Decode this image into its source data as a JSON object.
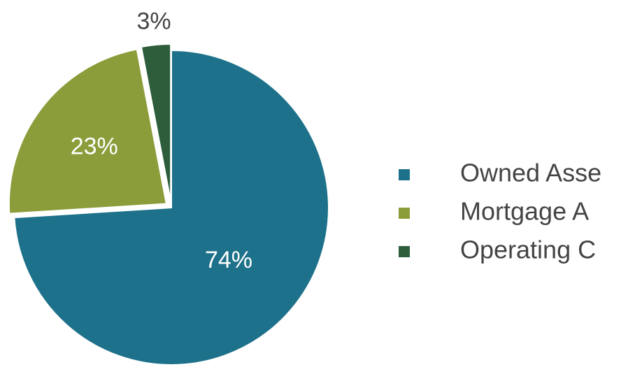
{
  "chart_data": {
    "type": "pie",
    "categories": [
      "Owned Asse",
      "Mortgage A",
      "Operating C"
    ],
    "values": [
      74,
      23,
      3
    ],
    "value_labels": [
      "74%",
      "23%",
      "3%"
    ],
    "colors": [
      "#1e718a",
      "#8b9d3b",
      "#2d5d3b"
    ]
  }
}
